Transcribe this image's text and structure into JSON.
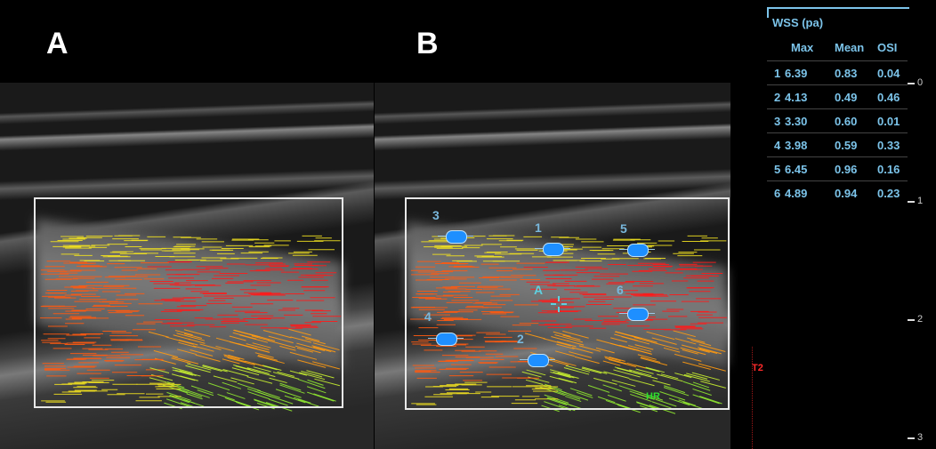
{
  "panels": [
    {
      "label": "A"
    },
    {
      "label": "B"
    }
  ],
  "wss_table": {
    "title": "WSS (pa)",
    "columns": [
      "Max",
      "Mean",
      "OSI"
    ],
    "rows": [
      {
        "id": "1",
        "max": "6.39",
        "mean": "0.83",
        "osi": "0.04"
      },
      {
        "id": "2",
        "max": "4.13",
        "mean": "0.49",
        "osi": "0.46"
      },
      {
        "id": "3",
        "max": "3.30",
        "mean": "0.60",
        "osi": "0.01"
      },
      {
        "id": "4",
        "max": "3.98",
        "mean": "0.59",
        "osi": "0.33"
      },
      {
        "id": "5",
        "max": "6.45",
        "mean": "0.96",
        "osi": "0.16"
      },
      {
        "id": "6",
        "max": "4.89",
        "mean": "0.94",
        "osi": "0.23"
      }
    ]
  },
  "markers": [
    "1",
    "2",
    "3",
    "4",
    "5",
    "6"
  ],
  "cursor_label": "A",
  "overlay_labels": {
    "hr": "HR",
    "t2": "T2"
  },
  "depth_scale": [
    "0",
    "1",
    "2",
    "3"
  ],
  "colors": {
    "table_text": "#7cc4ea",
    "marker": "#1e8fff",
    "flow_fast": "#ff1a1a",
    "flow_slow": "#d8ff30",
    "roi": "#e8e8e8"
  }
}
